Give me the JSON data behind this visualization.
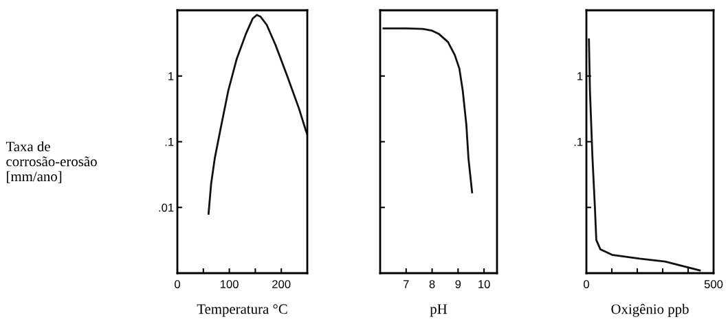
{
  "chart_data": [
    {
      "type": "line",
      "xlabel": "Temperatura °C",
      "ylabel": "Taxa de\ncorrosão-erosão\n[mm/ano]",
      "log": "y",
      "xlim": [
        0,
        250
      ],
      "ylim": [
        0.001,
        10
      ],
      "xticks": [
        0,
        {
          "value": 50,
          "label": null
        },
        100,
        {
          "value": 150,
          "label": null
        },
        200
      ],
      "yticks": [
        {
          "value": 0.01,
          "label": ".01"
        },
        {
          "value": 0.1,
          "label": ".1"
        },
        1
      ],
      "grid": false,
      "legend": false,
      "series": [
        {
          "color": "#111111",
          "x": [
            60,
            65,
            72,
            83,
            98,
            114,
            132,
            145,
            153,
            160,
            172,
            189,
            212,
            234,
            247,
            250
          ],
          "values": [
            0.008,
            0.023,
            0.056,
            0.155,
            0.6,
            1.8,
            4.4,
            7.5,
            8.5,
            8.0,
            6.0,
            2.95,
            0.97,
            0.32,
            0.15,
            0.13
          ]
        }
      ]
    },
    {
      "type": "line",
      "xlabel": "pH",
      "log": "y",
      "xlim": [
        6,
        10.5
      ],
      "ylim": [
        0.001,
        10
      ],
      "tick_labels": "x",
      "xticks": [
        7,
        8,
        9,
        10
      ],
      "yticks": [
        {
          "value": 0.01,
          "label": null
        },
        {
          "value": 0.1,
          "label": null
        },
        {
          "value": 1,
          "label": null
        }
      ],
      "grid": false,
      "legend": false,
      "series": [
        {
          "color": "#111111",
          "x": [
            6.13,
            7.0,
            7.64,
            8.0,
            8.25,
            8.61,
            8.87,
            9.05,
            9.18,
            9.32,
            9.4,
            9.54
          ],
          "values": [
            5.3,
            5.3,
            5.2,
            4.9,
            4.4,
            3.3,
            2.1,
            1.3,
            0.6,
            0.18,
            0.056,
            0.017
          ]
        }
      ]
    },
    {
      "type": "line",
      "xlabel": "Oxigênio ppb",
      "log": "y",
      "xlim": [
        0,
        500
      ],
      "ylim": [
        0.001,
        10
      ],
      "xticks": [
        0,
        {
          "value": 100,
          "label": null
        },
        {
          "value": 200,
          "label": null
        },
        {
          "value": 300,
          "label": null
        },
        {
          "value": 400,
          "label": null
        },
        500
      ],
      "yticks": [
        {
          "value": 0.01,
          "label": null
        },
        {
          "value": 0.1,
          "label": ".1"
        },
        1
      ],
      "grid": false,
      "legend": false,
      "series": [
        {
          "color": "#111111",
          "x": [
            10,
            14,
            24,
            33,
            39,
            55,
            101,
            210,
            310,
            446
          ],
          "values": [
            3.6,
            0.6,
            0.056,
            0.011,
            0.0032,
            0.0023,
            0.0019,
            0.00166,
            0.0015,
            0.0011
          ]
        }
      ]
    }
  ]
}
